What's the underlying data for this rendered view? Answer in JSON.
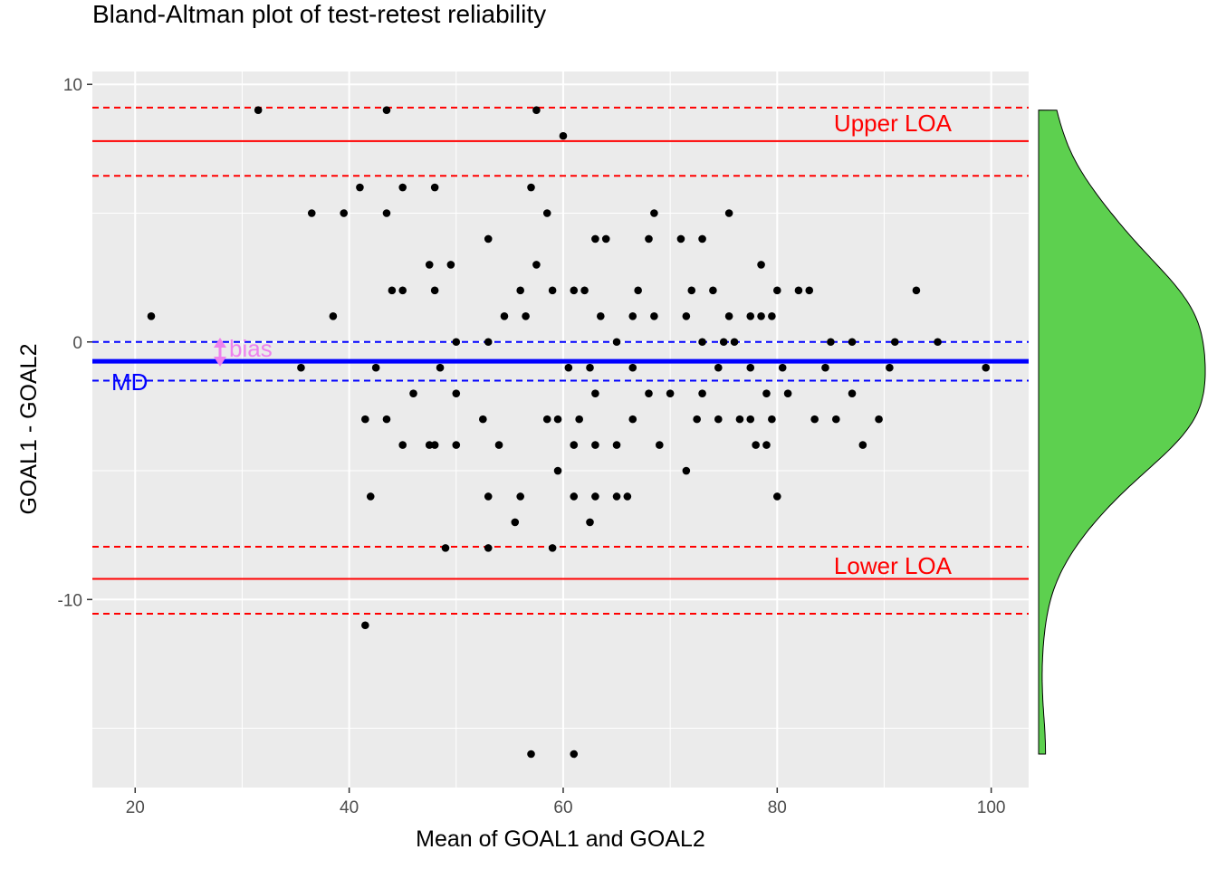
{
  "chart_data": {
    "type": "scatter",
    "title": "Bland-Altman plot of test-retest reliability",
    "xlabel": "Mean of GOAL1 and GOAL2",
    "ylabel": "GOAL1 - GOAL2",
    "xlim": [
      16,
      103.5
    ],
    "ylim": [
      -17.3,
      10.5
    ],
    "x_ticks": [
      20,
      40,
      60,
      80,
      100
    ],
    "y_ticks": [
      -10,
      0,
      10
    ],
    "grid": true,
    "reference_lines": {
      "mean_difference": -0.75,
      "mean_difference_ci": [
        -1.5,
        0.0
      ],
      "upper_loa": 7.8,
      "upper_loa_ci": [
        6.45,
        9.1
      ],
      "lower_loa": -9.2,
      "lower_loa_ci": [
        -10.55,
        -7.95
      ]
    },
    "annotations": {
      "upper_loa_label": "Upper LOA",
      "lower_loa_label": "Lower LOA",
      "md_label": "MD",
      "bias_label": "bias"
    },
    "colors": {
      "loa": "#ff0000",
      "md": "#0000ff",
      "bias": "#ee82ee",
      "points": "#000000",
      "density": "#5dd04f",
      "panel": "#ebebeb"
    },
    "points": [
      [
        21.5,
        1
      ],
      [
        31.5,
        9
      ],
      [
        35.5,
        -1
      ],
      [
        36.5,
        5
      ],
      [
        38.5,
        1
      ],
      [
        39.5,
        5
      ],
      [
        41,
        6
      ],
      [
        41.5,
        -3
      ],
      [
        41.5,
        -11
      ],
      [
        42,
        -6
      ],
      [
        42.5,
        -1
      ],
      [
        43.5,
        9
      ],
      [
        43.5,
        5
      ],
      [
        43.5,
        -3
      ],
      [
        44,
        2
      ],
      [
        45,
        6
      ],
      [
        45,
        2
      ],
      [
        45,
        -4
      ],
      [
        46,
        -2
      ],
      [
        47.5,
        3
      ],
      [
        47.5,
        -4
      ],
      [
        48,
        6
      ],
      [
        48,
        2
      ],
      [
        48,
        -4
      ],
      [
        48.5,
        -1
      ],
      [
        49,
        -8
      ],
      [
        49.5,
        3
      ],
      [
        50,
        0
      ],
      [
        50,
        -2
      ],
      [
        50,
        -4
      ],
      [
        52.5,
        -3
      ],
      [
        53,
        4
      ],
      [
        53,
        0
      ],
      [
        53,
        -6
      ],
      [
        53,
        -8
      ],
      [
        54,
        -4
      ],
      [
        54.5,
        1
      ],
      [
        55.5,
        -7
      ],
      [
        56,
        2
      ],
      [
        56,
        -6
      ],
      [
        56.5,
        1
      ],
      [
        57,
        6
      ],
      [
        57,
        -16
      ],
      [
        57.5,
        9
      ],
      [
        57.5,
        3
      ],
      [
        58.5,
        5
      ],
      [
        58.5,
        -3
      ],
      [
        59,
        2
      ],
      [
        59,
        -8
      ],
      [
        59.5,
        -3
      ],
      [
        59.5,
        -5
      ],
      [
        60,
        8
      ],
      [
        60.5,
        -1
      ],
      [
        61,
        2
      ],
      [
        61,
        -4
      ],
      [
        61,
        -6
      ],
      [
        61,
        -16
      ],
      [
        61.5,
        -3
      ],
      [
        62,
        2
      ],
      [
        62.5,
        -1
      ],
      [
        62.5,
        -7
      ],
      [
        63,
        4
      ],
      [
        63,
        -2
      ],
      [
        63,
        -4
      ],
      [
        63,
        -6
      ],
      [
        63.5,
        1
      ],
      [
        64,
        4
      ],
      [
        65,
        0
      ],
      [
        65,
        -4
      ],
      [
        65,
        -6
      ],
      [
        66,
        -6
      ],
      [
        66.5,
        1
      ],
      [
        66.5,
        -1
      ],
      [
        66.5,
        -3
      ],
      [
        67,
        2
      ],
      [
        68,
        4
      ],
      [
        68,
        -2
      ],
      [
        68.5,
        5
      ],
      [
        68.5,
        1
      ],
      [
        69,
        -4
      ],
      [
        70,
        -2
      ],
      [
        71,
        4
      ],
      [
        71.5,
        1
      ],
      [
        71.5,
        -5
      ],
      [
        72,
        2
      ],
      [
        72.5,
        -3
      ],
      [
        73,
        4
      ],
      [
        73,
        0
      ],
      [
        73,
        -2
      ],
      [
        74,
        2
      ],
      [
        74.5,
        -1
      ],
      [
        74.5,
        -3
      ],
      [
        75,
        0
      ],
      [
        75.5,
        5
      ],
      [
        75.5,
        1
      ],
      [
        76,
        0
      ],
      [
        76.5,
        -3
      ],
      [
        77.5,
        1
      ],
      [
        77.5,
        -1
      ],
      [
        77.5,
        -3
      ],
      [
        78,
        -4
      ],
      [
        78.5,
        3
      ],
      [
        78.5,
        1
      ],
      [
        79,
        -2
      ],
      [
        79,
        -4
      ],
      [
        79.5,
        1
      ],
      [
        79.5,
        -3
      ],
      [
        80,
        2
      ],
      [
        80,
        -6
      ],
      [
        80.5,
        -1
      ],
      [
        81,
        -2
      ],
      [
        82,
        2
      ],
      [
        83,
        2
      ],
      [
        83.5,
        -3
      ],
      [
        84.5,
        -1
      ],
      [
        85,
        0
      ],
      [
        85.5,
        -3
      ],
      [
        87,
        0
      ],
      [
        87,
        -2
      ],
      [
        88,
        -4
      ],
      [
        89.5,
        -3
      ],
      [
        90.5,
        -1
      ],
      [
        91,
        0
      ],
      [
        93,
        2
      ],
      [
        95,
        0
      ],
      [
        99.5,
        -1
      ]
    ]
  }
}
